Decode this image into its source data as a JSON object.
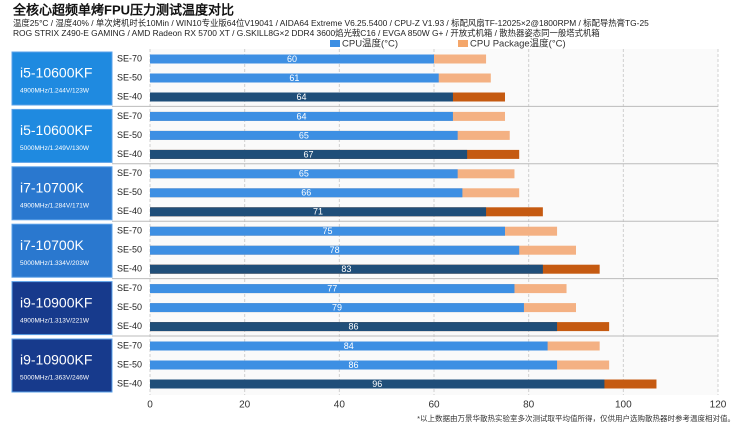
{
  "chart_data": {
    "type": "bar",
    "title": "全核心超频单烤FPU压力测试温度对比",
    "subtitle": [
      "温度25°C / 湿度40% / 单次烤机时长10Min / WIN10专业版64位V19041 / AIDA64 Extreme V6.25.5400 / CPU-Z V1.93 / 标配风扇TF-12025×2@1800RPM / 标配导热膏TG-25",
      "ROG STRIX Z490-E GAMING / AMD Radeon RX 5700 XT / G.SKILL8G×2 DDR4 3600焰光戟C16 / EVGA 850W G+ / 开放式机箱 / 散热器姿态同一般塔式机箱"
    ],
    "footnote": "*以上数据由万景华散热实验室多次测试取平均值所得，仅供用户选购散热器时参考温度相对值。",
    "groups": [
      {
        "name": "i5-10600KF",
        "spec": "4900MHz/1.244V/123W",
        "color": "#1f8ae0"
      },
      {
        "name": "i5-10600KF",
        "spec": "5000MHz/1.249V/130W",
        "color": "#1f8ae0"
      },
      {
        "name": "i7-10700K",
        "spec": "4900MHz/1.284V/171W",
        "color": "#2a78cf"
      },
      {
        "name": "i7-10700K",
        "spec": "5000MHz/1.334V/203W",
        "color": "#2a78cf"
      },
      {
        "name": "i9-10900KF",
        "spec": "4900MHz/1.313V/221W",
        "color": "#173a8c"
      },
      {
        "name": "i9-10900KF",
        "spec": "5000MHz/1.363V/246W",
        "color": "#173a8c"
      }
    ],
    "categories": [
      "SE-70",
      "SE-50",
      "SE-40",
      "SE-70",
      "SE-50",
      "SE-40",
      "SE-70",
      "SE-50",
      "SE-40",
      "SE-70",
      "SE-50",
      "SE-40",
      "SE-70",
      "SE-50",
      "SE-40",
      "SE-70",
      "SE-50",
      "SE-40"
    ],
    "series": [
      {
        "name": "CPU Package温度(°C)",
        "color": "#f4a66a",
        "colors": [
          "#f4b183",
          "#f4b183",
          "#c55a11",
          "#f4b183",
          "#f4b183",
          "#c55a11",
          "#f4b183",
          "#f4b183",
          "#c55a11",
          "#f4b183",
          "#f4b183",
          "#c55a11",
          "#f4b183",
          "#f4b183",
          "#c55a11",
          "#f4b183",
          "#f4b183",
          "#c55a11"
        ],
        "values": [
          71,
          72,
          75,
          75,
          76,
          78,
          77,
          78,
          83,
          86,
          90,
          95,
          88,
          90,
          97,
          95,
          97,
          107
        ]
      },
      {
        "name": "CPU温度(°C)",
        "color": "#3d8fe3",
        "colors": [
          "#3d8fe3",
          "#3d8fe3",
          "#1f4e79",
          "#3d8fe3",
          "#3d8fe3",
          "#1f4e79",
          "#3d8fe3",
          "#3d8fe3",
          "#1f4e79",
          "#3d8fe3",
          "#3d8fe3",
          "#1f4e79",
          "#3d8fe3",
          "#3d8fe3",
          "#1f4e79",
          "#3d8fe3",
          "#3d8fe3",
          "#1f4e79"
        ],
        "values": [
          60,
          61,
          64,
          64,
          65,
          67,
          65,
          66,
          71,
          75,
          78,
          83,
          77,
          79,
          86,
          84,
          86,
          96
        ]
      }
    ],
    "xlim": [
      0,
      120
    ],
    "xticks": [
      0,
      20,
      40,
      60,
      80,
      100,
      120
    ],
    "grid": true
  }
}
